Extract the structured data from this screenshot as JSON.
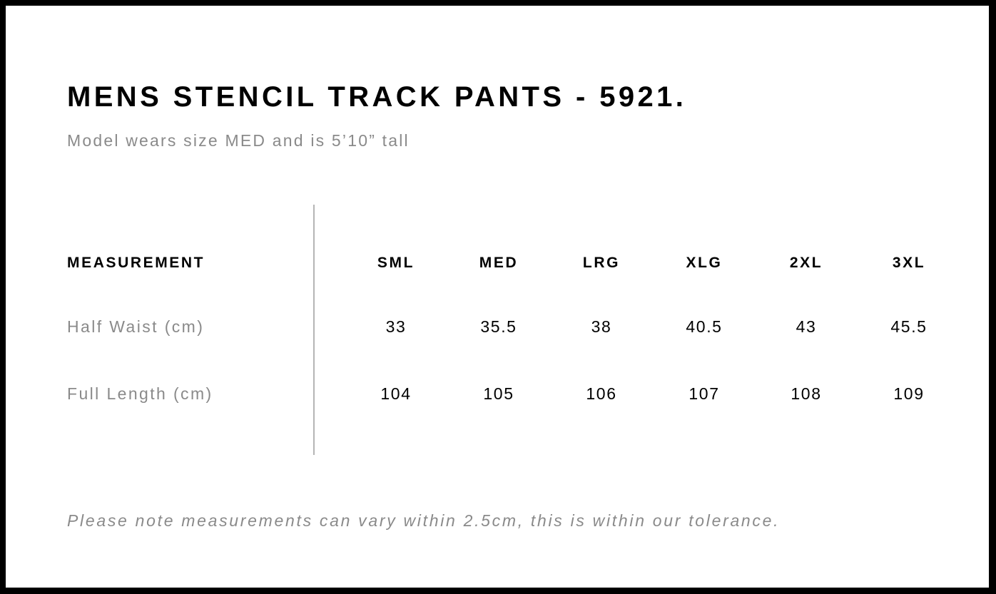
{
  "title": "MENS STENCIL TRACK PANTS - 5921.",
  "subtitle": "Model wears size MED and is 5’10” tall",
  "table": {
    "header_label": "MEASUREMENT",
    "sizes": [
      "SML",
      "MED",
      "LRG",
      "XLG",
      "2XL",
      "3XL"
    ],
    "rows": [
      {
        "label": "Half Waist (cm)",
        "values": [
          "33",
          "35.5",
          "38",
          "40.5",
          "43",
          "45.5"
        ]
      },
      {
        "label": "Full Length (cm)",
        "values": [
          "104",
          "105",
          "106",
          "107",
          "108",
          "109"
        ]
      }
    ]
  },
  "note": "Please note measurements can vary within 2.5cm, this is within our tolerance."
}
